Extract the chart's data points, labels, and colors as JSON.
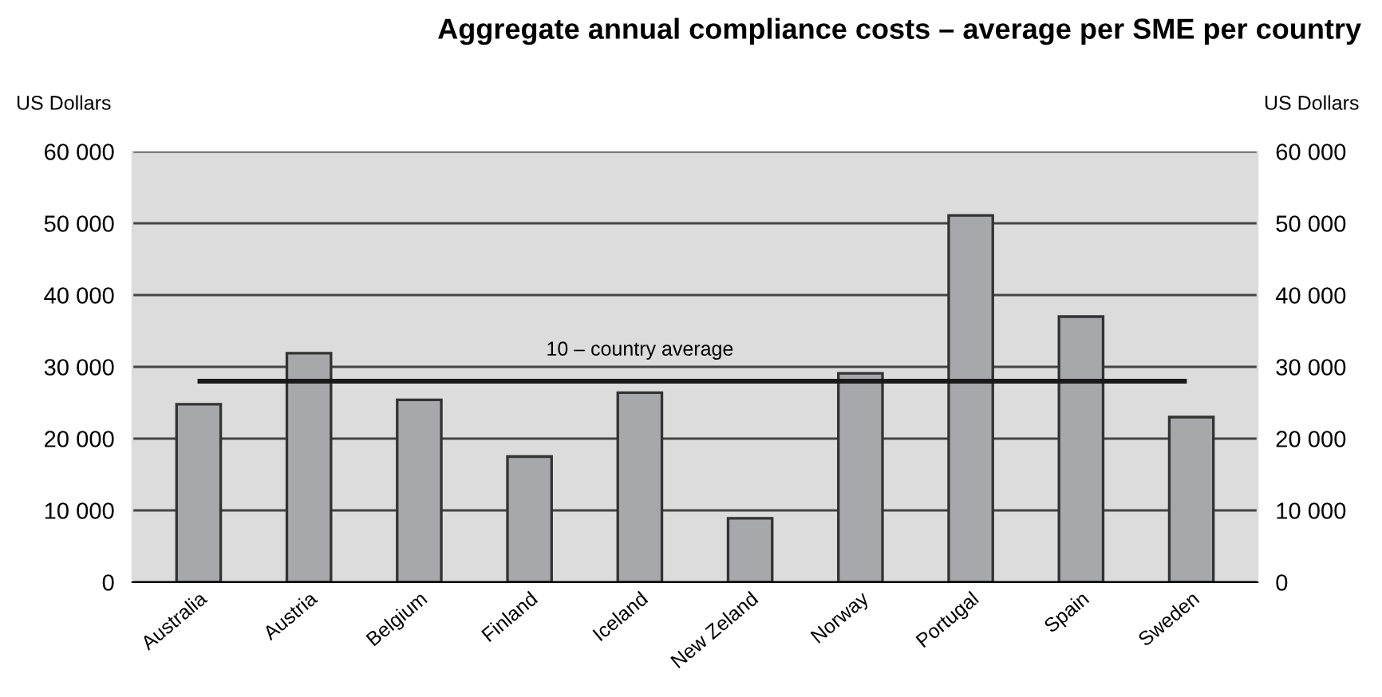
{
  "chart_data": {
    "type": "bar",
    "title": "Aggregate annual compliance costs – average per SME per country",
    "ylabel": "US Dollars",
    "y2label": "US Dollars",
    "categories": [
      "Australia",
      "Austria",
      "Belgium",
      "Finland",
      "Iceland",
      "New Zeland",
      "Norway",
      "Portugal",
      "Spain",
      "Sweden"
    ],
    "values": [
      24800,
      31900,
      25400,
      17500,
      26400,
      8900,
      29100,
      51100,
      37000,
      23000
    ],
    "color": "#a7a8ac",
    "ylim": [
      0,
      60000
    ],
    "yticks": [
      {
        "value": 0,
        "label": "0"
      },
      {
        "value": 10000,
        "label": "10 000"
      },
      {
        "value": 20000,
        "label": "20 000"
      },
      {
        "value": 30000,
        "label": "30 000"
      },
      {
        "value": 40000,
        "label": "40 000"
      },
      {
        "value": 50000,
        "label": "50 000"
      },
      {
        "value": 60000,
        "label": "60 000"
      }
    ],
    "y2lim": [
      0,
      60000
    ],
    "y2ticks": [
      {
        "value": 0,
        "label": "0"
      },
      {
        "value": 10000,
        "label": "10 000"
      },
      {
        "value": 20000,
        "label": "20 000"
      },
      {
        "value": 30000,
        "label": "30 000"
      },
      {
        "value": 40000,
        "label": "40 000"
      },
      {
        "value": 50000,
        "label": "50 000"
      },
      {
        "value": 60000,
        "label": "60 000"
      }
    ],
    "ref_lines": [
      {
        "axis": "y",
        "value": 28000,
        "label": "10 – country average",
        "color": "#1a1a1a"
      }
    ],
    "grid": "y",
    "legend": false
  }
}
